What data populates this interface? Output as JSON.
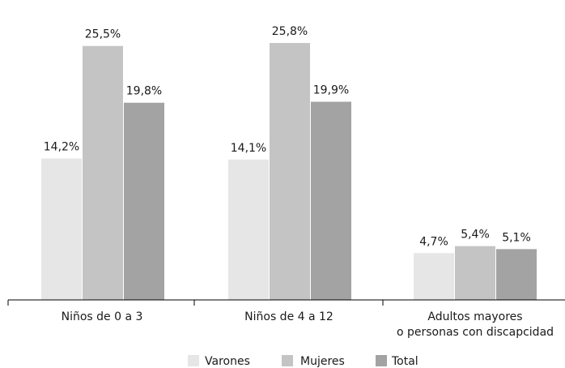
{
  "chart_data": {
    "type": "bar",
    "categories": [
      [
        "Niños de 0 a 3"
      ],
      [
        "Niños de 4 a 12"
      ],
      [
        "Adultos mayores",
        "o personas con discapcidad"
      ]
    ],
    "series": [
      {
        "name": "Varones",
        "color": "#e6e6e6",
        "values": [
          14.2,
          14.1,
          4.7
        ],
        "labels": [
          "14,2%",
          "14,1%",
          "4,7%"
        ]
      },
      {
        "name": "Mujeres",
        "color": "#c4c4c4",
        "values": [
          25.5,
          25.8,
          5.4
        ],
        "labels": [
          "25,5%",
          "25,8%",
          "5,4%"
        ]
      },
      {
        "name": "Total",
        "color": "#a3a3a3",
        "values": [
          19.8,
          19.9,
          5.1
        ],
        "labels": [
          "19,8%",
          "19,9%",
          "5,1%"
        ]
      }
    ],
    "ylim": [
      0,
      28
    ],
    "grid": false,
    "legend_position": "bottom"
  }
}
